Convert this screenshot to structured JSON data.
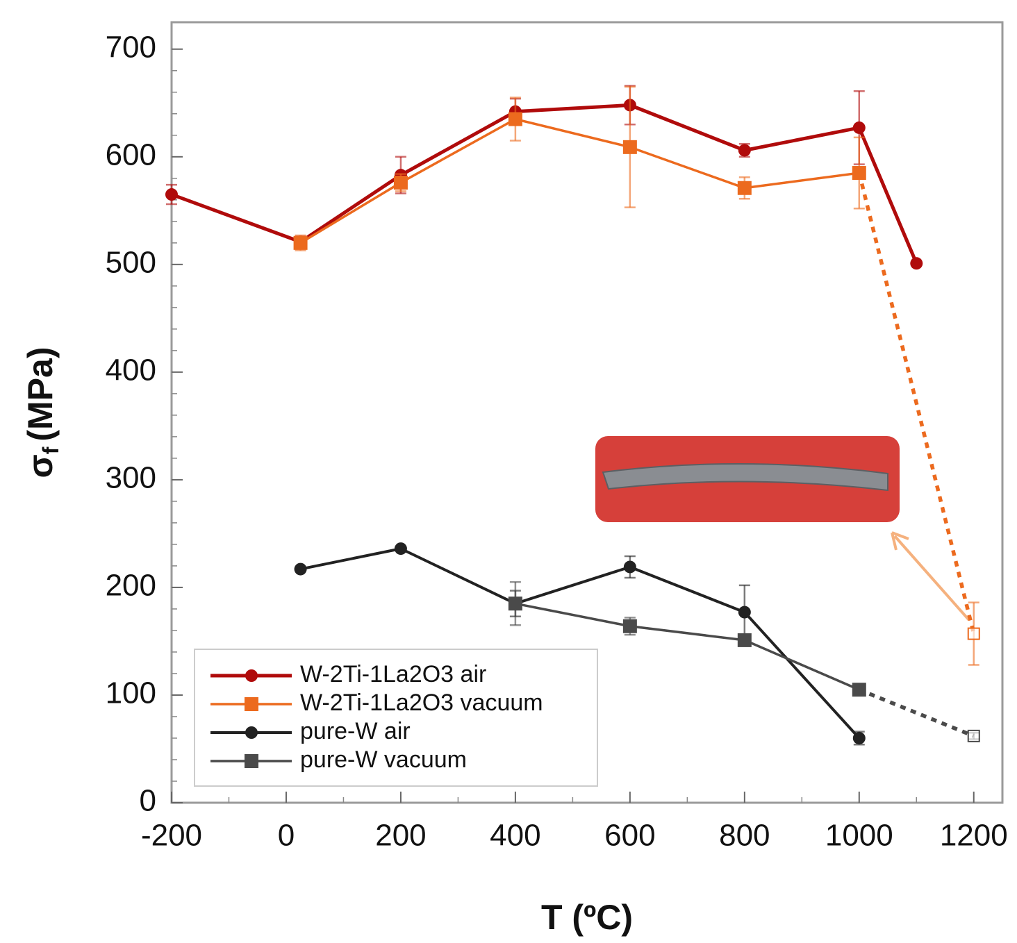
{
  "chart_data": {
    "type": "line",
    "xlabel": "T (ºC)",
    "ylabel": [
      "σ",
      "f",
      "(MPa)"
    ],
    "xlim": [
      -200,
      1250
    ],
    "ylim": [
      0,
      725
    ],
    "xticks": [
      -200,
      0,
      200,
      400,
      600,
      800,
      1000,
      1200
    ],
    "yticks": [
      0,
      100,
      200,
      300,
      400,
      500,
      600,
      700
    ],
    "legend": "lower left",
    "series": [
      {
        "name": "W-2Ti-1La2O3 air",
        "color": "#b00b0b",
        "marker": "circle",
        "x": [
          -200,
          25,
          200,
          400,
          600,
          800,
          1000,
          1100
        ],
        "values": [
          565,
          521,
          583,
          642,
          648,
          606,
          627,
          501
        ],
        "errors": [
          9,
          5,
          17,
          12,
          18,
          6,
          34,
          0
        ]
      },
      {
        "name": "W-2Ti-1La2O3 vacuum",
        "color": "#ec6a1e",
        "marker": "square",
        "x": [
          25,
          200,
          400,
          600,
          800,
          1000
        ],
        "values": [
          520,
          576,
          635,
          609,
          571,
          585
        ],
        "errors": [
          7,
          8,
          20,
          56,
          10,
          33
        ],
        "extension": {
          "x": 1200,
          "value": 157,
          "error": 29
        }
      },
      {
        "name": "pure-W air",
        "color": "#222222",
        "marker": "circle",
        "x": [
          25,
          200,
          400,
          600,
          800,
          1000
        ],
        "values": [
          217,
          236,
          185,
          219,
          177,
          60
        ],
        "errors": [
          0,
          0,
          12,
          10,
          25,
          6
        ]
      },
      {
        "name": "pure-W vacuum",
        "color": "#4a4a4a",
        "marker": "square",
        "x": [
          400,
          600,
          800,
          1000
        ],
        "values": [
          185,
          164,
          151,
          105
        ],
        "errors": [
          20,
          8,
          5,
          0
        ],
        "extension": {
          "x": 1200,
          "value": 62,
          "error": 3
        }
      }
    ]
  }
}
